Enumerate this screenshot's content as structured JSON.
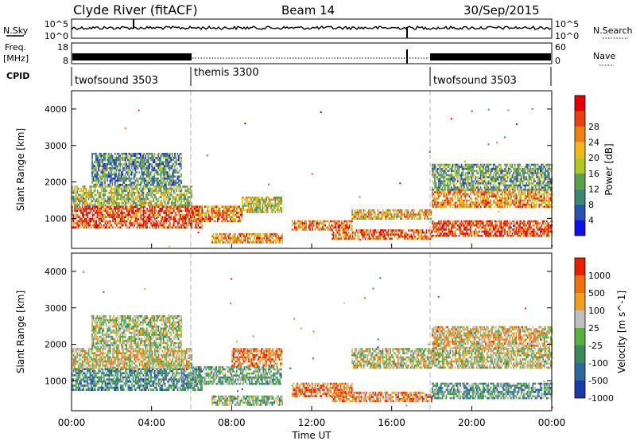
{
  "header": {
    "title": "Clyde River (fitACF)",
    "beam": "Beam 14",
    "date": "30/Sep/2015"
  },
  "status_panels": {
    "nsky_label": "N.Sky",
    "nsearch_label": "N.Search",
    "nsky_ticks": [
      "10^5",
      "10^0"
    ],
    "nsearch_ticks": [
      "10^5",
      "10^0"
    ],
    "freq_label_line1": "Freq.",
    "freq_label_line2": "[MHz]",
    "freq_ticks": [
      "18",
      "8"
    ],
    "nave_label": "Nave",
    "nave_ticks": [
      "60",
      "0"
    ],
    "cpid_label": "CPID",
    "cpid_segments": [
      {
        "label": "twofsound 3503",
        "start_hour": 0
      },
      {
        "label": "themis 3300",
        "start_hour": 6
      },
      {
        "label": "twofsound 3503",
        "start_hour": 18
      }
    ]
  },
  "axes": {
    "xlabel": "Time UT",
    "x_ticks": [
      "00:00",
      "04:00",
      "08:00",
      "12:00",
      "16:00",
      "20:00",
      "00:00"
    ],
    "ylabel": "Slant Range [km]",
    "y_ticks": [
      "1000",
      "2000",
      "3000",
      "4000"
    ]
  },
  "chart_data": [
    {
      "type": "heatmap",
      "panel": "power",
      "x_range_hours": [
        0,
        24
      ],
      "ylim_km": [
        180,
        4500
      ],
      "colorbar_label": "Power [dB]",
      "colorbar_ticks": [
        "4",
        "8",
        "12",
        "16",
        "20",
        "24",
        "28"
      ],
      "colors": [
        "#1010e8",
        "#2a50b0",
        "#3c8870",
        "#5aa04a",
        "#b0c820",
        "#f0b818",
        "#f08010",
        "#e84010",
        "#e00000"
      ],
      "bands": [
        {
          "t0": 0.0,
          "t1": 6.5,
          "r0": 780,
          "r1": 1350,
          "level": 0.85
        },
        {
          "t0": 0.0,
          "t1": 6.0,
          "r0": 1350,
          "r1": 1900,
          "level": 0.45
        },
        {
          "t0": 1.0,
          "t1": 5.5,
          "r0": 1900,
          "r1": 2800,
          "level": 0.3
        },
        {
          "t0": 6.0,
          "t1": 8.5,
          "r0": 900,
          "r1": 1350,
          "level": 0.7
        },
        {
          "t0": 8.5,
          "t1": 10.5,
          "r0": 1200,
          "r1": 1600,
          "level": 0.55
        },
        {
          "t0": 7.0,
          "t1": 10.5,
          "r0": 350,
          "r1": 600,
          "level": 0.7
        },
        {
          "t0": 11.0,
          "t1": 14.0,
          "r0": 700,
          "r1": 950,
          "level": 0.75
        },
        {
          "t0": 13.0,
          "t1": 18.0,
          "r0": 450,
          "r1": 700,
          "level": 0.8
        },
        {
          "t0": 14.0,
          "t1": 18.0,
          "r0": 1000,
          "r1": 1250,
          "level": 0.65
        },
        {
          "t0": 18.0,
          "t1": 24.0,
          "r0": 500,
          "r1": 950,
          "level": 0.85
        },
        {
          "t0": 18.0,
          "t1": 24.0,
          "r0": 1300,
          "r1": 1800,
          "level": 0.7
        },
        {
          "t0": 18.0,
          "t1": 24.0,
          "r0": 1800,
          "r1": 2500,
          "level": 0.35
        }
      ]
    },
    {
      "type": "heatmap",
      "panel": "velocity",
      "x_range_hours": [
        0,
        24
      ],
      "ylim_km": [
        180,
        4500
      ],
      "colorbar_label": "Velocity [m s^-1]",
      "colorbar_ticks": [
        "1000",
        "500",
        "100",
        "25",
        "-25",
        "-100",
        "-500",
        "-1000"
      ],
      "colors": [
        "#1a3aa8",
        "#2a6a9a",
        "#3a8a5a",
        "#58b040",
        "#c0c0c0",
        "#f0a020",
        "#f07010",
        "#e82000"
      ],
      "bands": [
        {
          "t0": 0.0,
          "t1": 6.5,
          "r0": 780,
          "r1": 1350,
          "level": 0.3
        },
        {
          "t0": 0.0,
          "t1": 6.0,
          "r0": 1350,
          "r1": 1900,
          "level": 0.6
        },
        {
          "t0": 1.0,
          "t1": 5.5,
          "r0": 1900,
          "r1": 2800,
          "level": 0.5
        },
        {
          "t0": 6.0,
          "t1": 10.5,
          "r0": 900,
          "r1": 1400,
          "level": 0.4
        },
        {
          "t0": 8.0,
          "t1": 10.5,
          "r0": 1400,
          "r1": 1900,
          "level": 0.8
        },
        {
          "t0": 7.0,
          "t1": 10.5,
          "r0": 350,
          "r1": 600,
          "level": 0.45
        },
        {
          "t0": 11.0,
          "t1": 14.0,
          "r0": 600,
          "r1": 950,
          "level": 0.8
        },
        {
          "t0": 13.0,
          "t1": 18.0,
          "r0": 450,
          "r1": 700,
          "level": 0.75
        },
        {
          "t0": 14.0,
          "t1": 24.0,
          "r0": 1350,
          "r1": 1900,
          "level": 0.55
        },
        {
          "t0": 18.0,
          "t1": 24.0,
          "r0": 500,
          "r1": 950,
          "level": 0.35
        },
        {
          "t0": 18.0,
          "t1": 24.0,
          "r0": 1900,
          "r1": 2500,
          "level": 0.65
        }
      ]
    }
  ]
}
